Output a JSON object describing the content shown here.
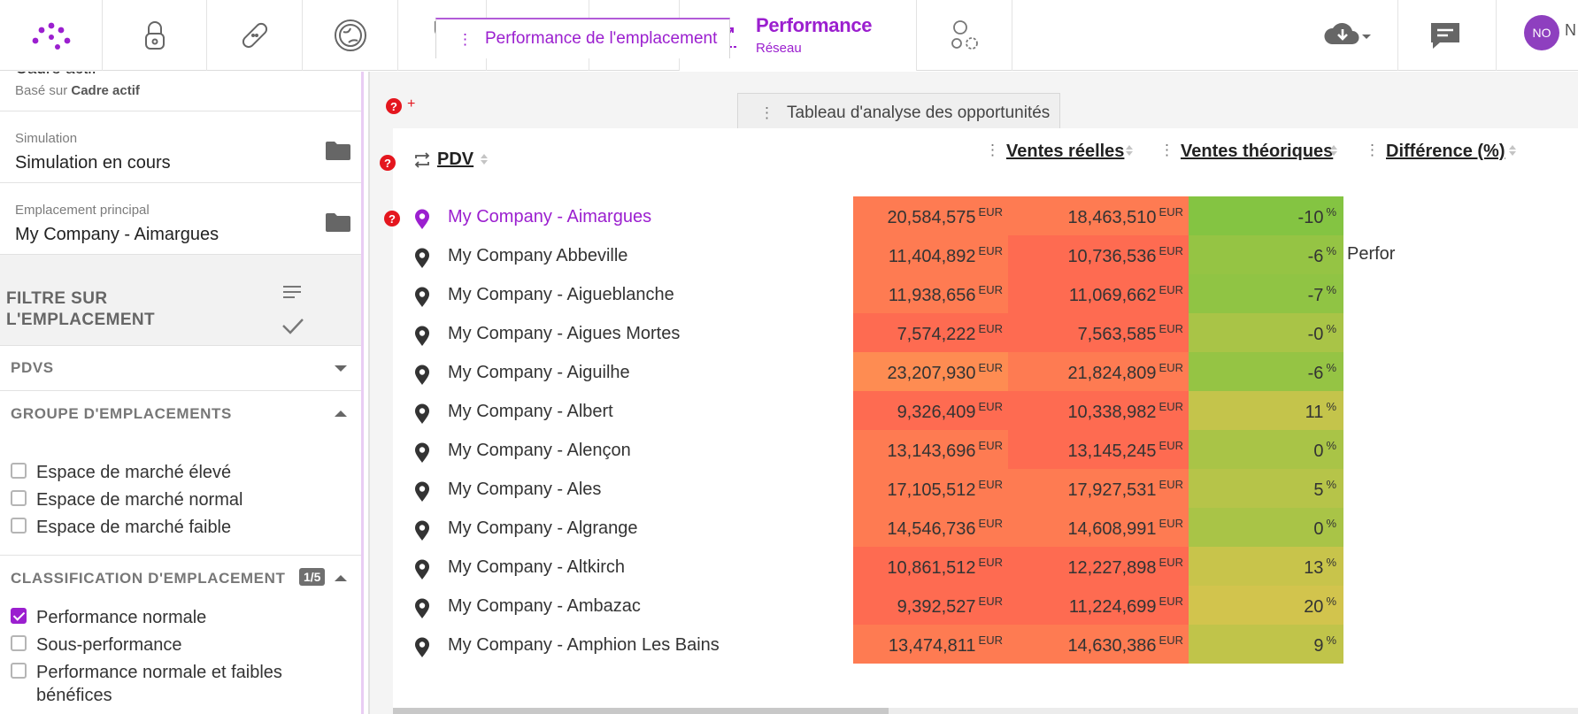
{
  "nav": {
    "icons": [
      "logo-icon",
      "lock-icon",
      "bandage-icon",
      "globe-icon",
      "tools-icon",
      "eye-icon",
      "map-pin-icon",
      "chart-icon",
      "settings-circles-icon"
    ],
    "active_title": "Performance",
    "active_subtitle": "Réseau",
    "avatar_initials": "NO",
    "avatar_trailing": "N"
  },
  "sidebar": {
    "frame": {
      "title_partial": "Cadre actif",
      "based_on_prefix": "Basé sur",
      "based_on_value": "Cadre actif"
    },
    "simulation": {
      "label": "Simulation",
      "value": "Simulation en cours"
    },
    "main_location": {
      "label": "Emplacement principal",
      "value": "My Company - Aimargues"
    },
    "filter": {
      "title_line1": "FILTRE SUR",
      "title_line2": "L'EMPLACEMENT"
    },
    "pdvs": {
      "title": "PDVS"
    },
    "location_group": {
      "title": "GROUPE D'EMPLACEMENTS",
      "options": [
        {
          "label": "Espace de marché élevé",
          "checked": false
        },
        {
          "label": "Espace de marché normal",
          "checked": false
        },
        {
          "label": "Espace de marché faible",
          "checked": false
        }
      ]
    },
    "classification": {
      "title": "CLASSIFICATION D'EMPLACEMENT",
      "badge": "1/5",
      "options": [
        {
          "label": "Performance normale",
          "checked": true
        },
        {
          "label": "Sous-performance",
          "checked": false
        },
        {
          "label": "Performance normale et faibles bénéfices",
          "checked": false
        }
      ]
    }
  },
  "tabs": [
    {
      "label": "Performance de l'emplacement",
      "active": true
    },
    {
      "label": "Tableau d'analyse des opportunités",
      "active": false
    }
  ],
  "help": {
    "plus": "+",
    "mark": "?"
  },
  "table": {
    "columns": {
      "pdv": "PDV",
      "actual": "Ventes réelles",
      "theoretical": "Ventes théoriques",
      "difference": "Différence (%)"
    },
    "currency": "EUR",
    "percent": "%",
    "side_text": "Perfor",
    "rows": [
      {
        "name": "My Company - Aimargues",
        "actual": "20,584,575",
        "theoretical": "18,463,510",
        "diff": "-10",
        "c1": "#fe7b52",
        "c2": "#fe7b52",
        "c3": "#84c442"
      },
      {
        "name": "My Company Abbeville",
        "actual": "11,404,892",
        "theoretical": "10,736,536",
        "diff": "-6",
        "c1": "#fe7b52",
        "c2": "#fe6b51",
        "c3": "#95c444"
      },
      {
        "name": "My Company - Aigueblanche",
        "actual": "11,938,656",
        "theoretical": "11,069,662",
        "diff": "-7",
        "c1": "#fe7b52",
        "c2": "#fe6b51",
        "c3": "#90c444"
      },
      {
        "name": "My Company - Aigues Mortes",
        "actual": "7,574,222",
        "theoretical": "7,563,585",
        "diff": "-0",
        "c1": "#fe6b51",
        "c2": "#fe6b51",
        "c3": "#a9c447"
      },
      {
        "name": "My Company - Aiguilhe",
        "actual": "23,207,930",
        "theoretical": "21,824,809",
        "diff": "-6",
        "c1": "#fe8c52",
        "c2": "#fe7b52",
        "c3": "#95c444"
      },
      {
        "name": "My Company - Albert",
        "actual": "9,326,409",
        "theoretical": "10,338,982",
        "diff": "11",
        "c1": "#fe6b51",
        "c2": "#fe6b51",
        "c3": "#c4c44b"
      },
      {
        "name": "My Company - Alençon",
        "actual": "13,143,696",
        "theoretical": "13,145,245",
        "diff": "0",
        "c1": "#fe7b52",
        "c2": "#fe6b51",
        "c3": "#a9c447"
      },
      {
        "name": "My Company - Ales",
        "actual": "17,105,512",
        "theoretical": "17,927,531",
        "diff": "5",
        "c1": "#fe7b52",
        "c2": "#fe7b52",
        "c3": "#b6c449"
      },
      {
        "name": "My Company - Algrange",
        "actual": "14,546,736",
        "theoretical": "14,608,991",
        "diff": "0",
        "c1": "#fe7b52",
        "c2": "#fe7b52",
        "c3": "#a9c447"
      },
      {
        "name": "My Company - Altkirch",
        "actual": "10,861,512",
        "theoretical": "12,227,898",
        "diff": "13",
        "c1": "#fe6b51",
        "c2": "#fe6b51",
        "c3": "#c8c44b"
      },
      {
        "name": "My Company - Ambazac",
        "actual": "9,392,527",
        "theoretical": "11,224,699",
        "diff": "20",
        "c1": "#fe6b51",
        "c2": "#fe6b51",
        "c3": "#d2c44d"
      },
      {
        "name": "My Company - Amphion Les Bains",
        "actual": "13,474,811",
        "theoretical": "14,630,386",
        "diff": "9",
        "c1": "#fe7b52",
        "c2": "#fe7b52",
        "c3": "#c0c44a"
      }
    ]
  },
  "colors": {
    "accent": "#9b1fcf",
    "help": "#e4161e"
  }
}
